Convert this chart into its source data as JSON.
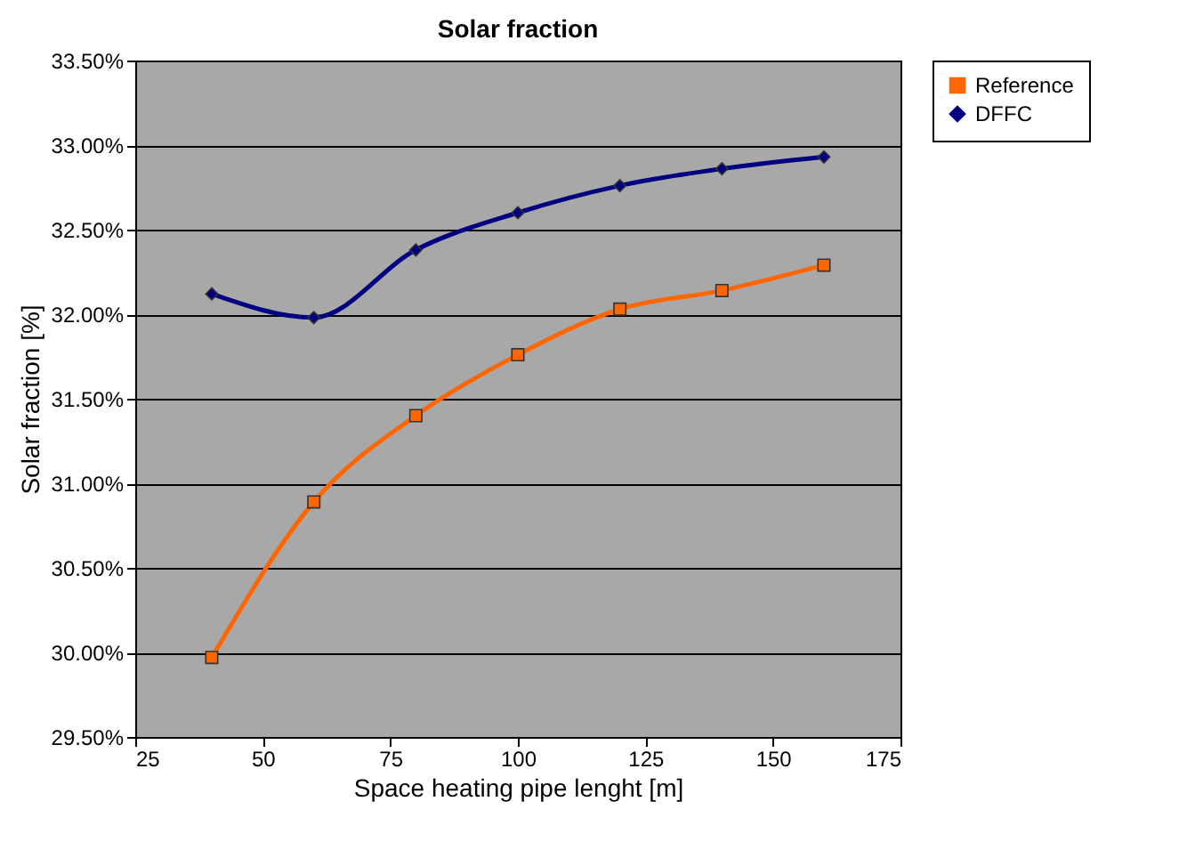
{
  "chart_data": {
    "type": "line",
    "title": "Solar fraction",
    "xlabel": "Space heating pipe lenght [m]",
    "ylabel": "Solar fraction [%]",
    "x": [
      40,
      60,
      80,
      100,
      120,
      140,
      160
    ],
    "series": [
      {
        "name": "Reference",
        "color": "#ff6600",
        "marker": "square",
        "values": [
          29.97,
          30.89,
          31.4,
          31.76,
          32.03,
          32.14,
          32.29
        ]
      },
      {
        "name": "DFFC",
        "color": "#000080",
        "marker": "diamond",
        "values": [
          32.12,
          31.98,
          32.38,
          32.6,
          32.76,
          32.86,
          32.93
        ]
      }
    ],
    "xlim": [
      25,
      175
    ],
    "xticks": [
      25,
      50,
      75,
      100,
      125,
      150,
      175
    ],
    "ylim": [
      29.5,
      33.5
    ],
    "yticks": [
      {
        "value": 29.5,
        "label": "29.50%"
      },
      {
        "value": 30,
        "label": "30.00%"
      },
      {
        "value": 30.5,
        "label": "30.50%"
      },
      {
        "value": 31,
        "label": "31.00%"
      },
      {
        "value": 31.5,
        "label": "31.50%"
      },
      {
        "value": 32,
        "label": "32.00%"
      },
      {
        "value": 32.5,
        "label": "32.50%"
      },
      {
        "value": 33,
        "label": "33.00%"
      },
      {
        "value": 33.5,
        "label": "33.50%"
      }
    ],
    "grid": "y",
    "legend": "right",
    "line_style": "solid"
  }
}
